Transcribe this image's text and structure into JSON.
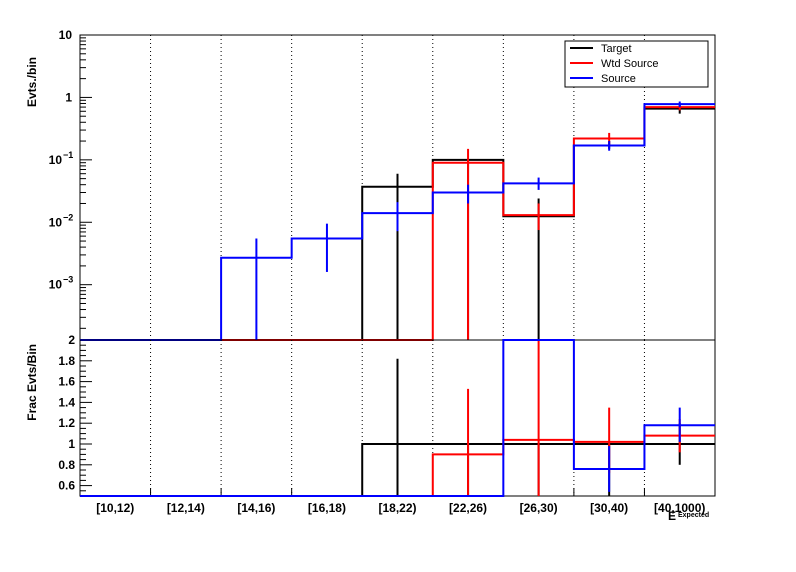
{
  "chart_data": [
    {
      "type": "step-histogram",
      "panel": "top",
      "ylabel": "Evts./bin",
      "yscale": "log",
      "ylim": [
        0.00013,
        10
      ],
      "grid": "vertical dotted lines at bin edges",
      "y_ticks": [
        {
          "value": 10,
          "label": "10",
          "exp": ""
        },
        {
          "value": 1,
          "label": "1",
          "exp": ""
        },
        {
          "value": 0.1,
          "label": "10",
          "exp": "−1"
        },
        {
          "value": 0.01,
          "label": "10",
          "exp": "−2"
        },
        {
          "value": 0.001,
          "label": "10",
          "exp": "−3"
        }
      ],
      "legend": {
        "position": "top-right",
        "entries": [
          {
            "name": "Target",
            "color": "#000000"
          },
          {
            "name": "Wtd Source",
            "color": "#ff0000"
          },
          {
            "name": "Source",
            "color": "#0000ff"
          }
        ]
      },
      "series": [
        {
          "name": "Target",
          "color": "#000000",
          "values": [
            0,
            0,
            0,
            0,
            0.037,
            0.1,
            0.0125,
            0.17,
            0.66
          ],
          "err_low": [
            0,
            0,
            0,
            0,
            0.00013,
            0.00013,
            0.00013,
            0.15,
            0.55
          ],
          "err_high": [
            0,
            0,
            0,
            0,
            0.06,
            0.1,
            0.024,
            0.2,
            0.75
          ]
        },
        {
          "name": "Wtd Source",
          "color": "#ff0000",
          "values": [
            0,
            0,
            0,
            0,
            0,
            0.09,
            0.013,
            0.22,
            0.7
          ],
          "err_low": [
            0,
            0,
            0,
            0,
            0,
            0.00013,
            0.0075,
            0.17,
            0.62
          ],
          "err_high": [
            0,
            0,
            0,
            0,
            0,
            0.15,
            0.02,
            0.27,
            0.8
          ]
        },
        {
          "name": "Source",
          "color": "#0000ff",
          "values": [
            0,
            0,
            0.0027,
            0.0055,
            0.014,
            0.03,
            0.042,
            0.17,
            0.78
          ],
          "err_low": [
            0,
            0,
            0.00013,
            0.0016,
            0.0072,
            0.02,
            0.033,
            0.14,
            0.7
          ],
          "err_high": [
            0,
            0,
            0.0055,
            0.0095,
            0.021,
            0.04,
            0.052,
            0.2,
            0.86
          ]
        }
      ]
    },
    {
      "type": "step-histogram",
      "panel": "bottom",
      "ylabel": "Frac Evts/Bin",
      "xlabel": "E",
      "xlabel_sub": "Expected",
      "ylim": [
        0.5,
        2
      ],
      "y_ticks": [
        "2",
        "1.8",
        "1.6",
        "1.4",
        "1.2",
        "1",
        "0.8",
        "0.6"
      ],
      "y_tick_values": [
        2,
        1.8,
        1.6,
        1.4,
        1.2,
        1,
        0.8,
        0.6
      ],
      "categories": [
        "[10,12)",
        "[12,14)",
        "[14,16)",
        "[16,18)",
        "[18,22)",
        "[22,26)",
        "[26,30)",
        "[30,40)",
        "[40,1000)"
      ],
      "series": [
        {
          "name": "Target",
          "color": "#000000",
          "values": [
            0.5,
            0.5,
            0.5,
            0.5,
            1.0,
            1.0,
            1.0,
            1.0,
            1.0
          ],
          "err_low": [
            null,
            null,
            null,
            null,
            0.5,
            0.5,
            0.5,
            0.5,
            0.8
          ],
          "err_high": [
            null,
            null,
            null,
            null,
            1.82,
            1.0,
            1.0,
            1.0,
            1.2
          ]
        },
        {
          "name": "Wtd Source",
          "color": "#ff0000",
          "values": [
            0.5,
            0.5,
            0.5,
            0.5,
            0.5,
            0.9,
            1.04,
            1.02,
            1.08
          ],
          "err_low": [
            null,
            null,
            null,
            null,
            null,
            0.5,
            0.5,
            0.72,
            0.92
          ],
          "err_high": [
            null,
            null,
            null,
            null,
            null,
            1.53,
            2.0,
            1.35,
            1.24
          ]
        },
        {
          "name": "Source",
          "color": "#0000ff",
          "values": [
            0.5,
            0.5,
            0.5,
            0.5,
            0.5,
            0.5,
            2.05,
            0.76,
            1.18
          ],
          "err_low": [
            null,
            null,
            null,
            null,
            null,
            null,
            null,
            0.54,
            1.02
          ],
          "err_high": [
            null,
            null,
            null,
            null,
            null,
            null,
            null,
            0.98,
            1.35
          ]
        }
      ]
    }
  ]
}
